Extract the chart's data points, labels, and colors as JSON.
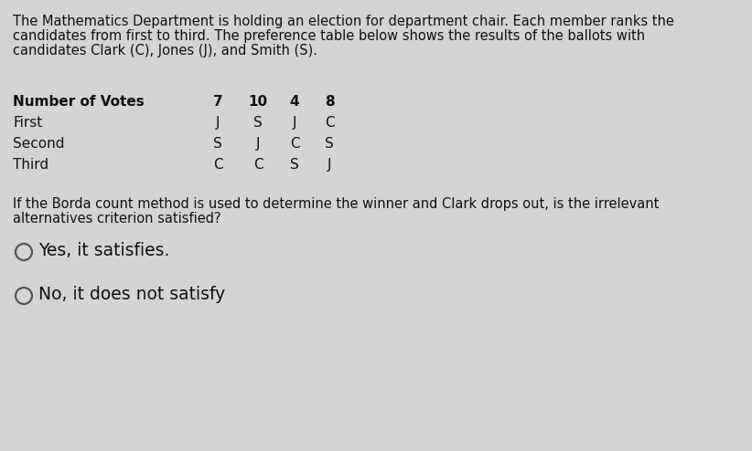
{
  "bg_color": "#d4d4d4",
  "intro_line1": "The Mathematics Department is holding an election for department chair. Each member ranks the",
  "intro_line2": "candidates from first to third. The preference table below shows the results of the ballots with",
  "intro_line3": "candidates Clark (C), Jones (J), and Smith (S).",
  "table_row_labels": [
    "Number of Votes",
    "First",
    "Second",
    "Third"
  ],
  "table_col_headers": [
    "7",
    "10",
    "4",
    "8"
  ],
  "table_data": [
    [
      "J",
      "S",
      "J",
      "C"
    ],
    [
      "S",
      "J",
      "C",
      "S"
    ],
    [
      "C",
      "C",
      "S",
      "J"
    ]
  ],
  "question_line1": "If the Borda count method is used to determine the winner and Clark drops out, is the irrelevant",
  "question_line2": "alternatives criterion satisfied?",
  "option1": "Yes, it satisfies.",
  "option2": "No, it does not satisfy",
  "text_color": "#111111",
  "intro_fontsize": 10.5,
  "table_bold_fontsize": 11,
  "table_fontsize": 11,
  "question_fontsize": 10.5,
  "option_fontsize": 13.5,
  "circle_color": "#555555"
}
